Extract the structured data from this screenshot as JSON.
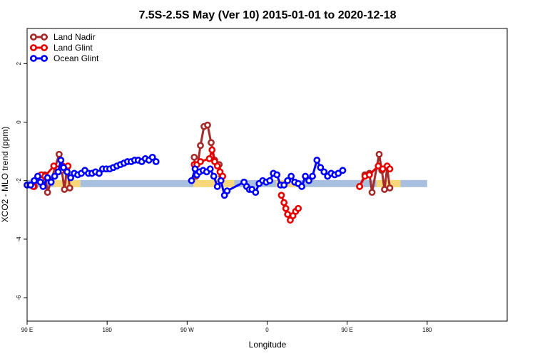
{
  "chart_data": {
    "type": "line",
    "title": "7.5S-2.5S May (Ver 10)   2015-01-01 to 2020-12-18",
    "xlabel": "Longitude",
    "ylabel": "XCO2 - MLO trend (ppm)",
    "xlim": [
      -90,
      450
    ],
    "ylim": [
      -6.8,
      3.2
    ],
    "x_ticks": [
      {
        "value": -90,
        "label": "90 E"
      },
      {
        "value": 0,
        "label": "180"
      },
      {
        "value": 90,
        "label": "90 W"
      },
      {
        "value": 180,
        "label": "0"
      },
      {
        "value": 270,
        "label": "90 E"
      },
      {
        "value": 360,
        "label": "180"
      }
    ],
    "y_ticks": [
      {
        "value": 2,
        "label": "2"
      },
      {
        "value": 0,
        "label": "0"
      },
      {
        "value": -2,
        "label": "-2"
      },
      {
        "value": -4,
        "label": "-4"
      },
      {
        "value": -6,
        "label": "-6"
      }
    ],
    "grid": false,
    "legend_position": "top-left",
    "surface_band": {
      "y": -2.1,
      "segments": [
        {
          "from": -90,
          "to": -60,
          "type": "ocean",
          "color": "#a8c0de"
        },
        {
          "from": -60,
          "to": -30,
          "type": "land",
          "color": "#f7d77a"
        },
        {
          "from": -30,
          "to": 97,
          "type": "ocean",
          "color": "#a8c0de"
        },
        {
          "from": 97,
          "to": 143,
          "type": "land",
          "color": "#f7d77a"
        },
        {
          "from": 143,
          "to": 190,
          "type": "ocean",
          "color": "#a8c0de"
        },
        {
          "from": 190,
          "to": 217,
          "type": "land",
          "color": "#f7d77a"
        },
        {
          "from": 217,
          "to": 303,
          "type": "ocean",
          "color": "#a8c0de"
        },
        {
          "from": 303,
          "to": 330,
          "type": "land",
          "color": "#f7d77a"
        },
        {
          "from": 330,
          "to": 360,
          "type": "ocean",
          "color": "#a8c0de"
        }
      ]
    },
    "series": [
      {
        "name": "Land Nadir",
        "color": "#a52a2a",
        "points": [
          [
            -82,
            -2.2
          ],
          [
            -78,
            -2.0
          ],
          [
            -74,
            -1.95
          ],
          [
            -70,
            -1.8
          ],
          [
            -67,
            -2.4
          ],
          [
            -54,
            -1.1
          ],
          [
            -51,
            -1.65
          ],
          [
            -48,
            -2.3
          ],
          [
            -45,
            -1.55
          ],
          [
            -42,
            -2.25
          ],
          [
            98,
            -1.2
          ],
          [
            100,
            -1.85
          ],
          [
            105,
            -0.8
          ],
          [
            109,
            -0.15
          ],
          [
            113,
            -0.1
          ],
          [
            117,
            -0.7
          ],
          [
            121,
            -1.3
          ],
          [
            126,
            -1.45
          ],
          [
            129,
            -1.85
          ],
          [
            284,
            -2.2
          ],
          [
            290,
            -1.8
          ],
          [
            295,
            -1.75
          ],
          [
            298,
            -2.4
          ],
          [
            306,
            -1.1
          ],
          [
            309,
            -1.65
          ],
          [
            312,
            -2.3
          ],
          [
            315,
            -1.55
          ],
          [
            318,
            -2.25
          ]
        ]
      },
      {
        "name": "Land Glint",
        "color": "#e60000",
        "points": [
          [
            -83,
            -2.2
          ],
          [
            -78,
            -1.85
          ],
          [
            -74,
            -1.8
          ],
          [
            -70,
            -1.85
          ],
          [
            -60,
            -1.5
          ],
          [
            -55,
            -1.6
          ],
          [
            -50,
            -1.5
          ],
          [
            -47,
            -1.6
          ],
          [
            -44,
            -1.5
          ],
          [
            98,
            -1.45
          ],
          [
            101,
            -1.45
          ],
          [
            105,
            -1.35
          ],
          [
            115,
            -1.25
          ],
          [
            118,
            -0.95
          ],
          [
            121,
            -1.35
          ],
          [
            124,
            -1.5
          ],
          [
            127,
            -1.7
          ],
          [
            130,
            -1.85
          ],
          [
            196,
            -2.5
          ],
          [
            199,
            -2.75
          ],
          [
            201,
            -2.95
          ],
          [
            203,
            -3.15
          ],
          [
            206,
            -3.35
          ],
          [
            209,
            -3.2
          ],
          [
            212,
            -3.05
          ],
          [
            215,
            -2.95
          ],
          [
            284,
            -2.2
          ],
          [
            290,
            -1.85
          ],
          [
            295,
            -1.8
          ],
          [
            305,
            -1.5
          ],
          [
            310,
            -1.6
          ],
          [
            315,
            -1.5
          ],
          [
            318,
            -1.6
          ]
        ]
      },
      {
        "name": "Ocean Glint",
        "color": "#0000ff",
        "points": [
          [
            -90,
            -2.15
          ],
          [
            -86,
            -2.15
          ],
          [
            -82,
            -2.0
          ],
          [
            -78,
            -1.85
          ],
          [
            -75,
            -2.05
          ],
          [
            -72,
            -2.2
          ],
          [
            -67,
            -1.9
          ],
          [
            -63,
            -2.05
          ],
          [
            -59,
            -1.85
          ],
          [
            -55,
            -1.7
          ],
          [
            -52,
            -1.3
          ],
          [
            -49,
            -1.55
          ],
          [
            -45,
            -1.7
          ],
          [
            -41,
            -1.9
          ],
          [
            -37,
            -1.75
          ],
          [
            -33,
            -1.8
          ],
          [
            -29,
            -1.75
          ],
          [
            -25,
            -1.65
          ],
          [
            -21,
            -1.75
          ],
          [
            -17,
            -1.75
          ],
          [
            -13,
            -1.7
          ],
          [
            -9,
            -1.75
          ],
          [
            -5,
            -1.6
          ],
          [
            -1,
            -1.6
          ],
          [
            3,
            -1.6
          ],
          [
            7,
            -1.55
          ],
          [
            11,
            -1.5
          ],
          [
            15,
            -1.45
          ],
          [
            19,
            -1.4
          ],
          [
            23,
            -1.35
          ],
          [
            27,
            -1.35
          ],
          [
            31,
            -1.3
          ],
          [
            35,
            -1.3
          ],
          [
            39,
            -1.35
          ],
          [
            43,
            -1.25
          ],
          [
            47,
            -1.3
          ],
          [
            51,
            -1.2
          ],
          [
            55,
            -1.35
          ],
          [
            95,
            -2.0
          ],
          [
            99,
            -1.6
          ],
          [
            101,
            -1.8
          ],
          [
            104,
            -1.7
          ],
          [
            108,
            -1.65
          ],
          [
            112,
            -1.7
          ],
          [
            116,
            -1.6
          ],
          [
            120,
            -1.85
          ],
          [
            124,
            -2.2
          ],
          [
            128,
            -2.0
          ],
          [
            132,
            -2.5
          ],
          [
            135,
            -2.35
          ],
          [
            154,
            -2.05
          ],
          [
            157,
            -2.2
          ],
          [
            160,
            -2.3
          ],
          [
            163,
            -2.3
          ],
          [
            167,
            -2.4
          ],
          [
            171,
            -2.1
          ],
          [
            175,
            -2.0
          ],
          [
            179,
            -2.05
          ],
          [
            183,
            -2.0
          ],
          [
            187,
            -1.75
          ],
          [
            191,
            -1.8
          ],
          [
            195,
            -2.15
          ],
          [
            199,
            -2.15
          ],
          [
            203,
            -2.0
          ],
          [
            207,
            -1.85
          ],
          [
            211,
            -2.05
          ],
          [
            215,
            -2.1
          ],
          [
            219,
            -2.2
          ],
          [
            223,
            -1.85
          ],
          [
            227,
            -2.0
          ],
          [
            231,
            -1.85
          ],
          [
            236,
            -1.3
          ],
          [
            240,
            -1.55
          ],
          [
            244,
            -1.7
          ],
          [
            248,
            -1.85
          ],
          [
            252,
            -1.75
          ],
          [
            256,
            -1.8
          ],
          [
            260,
            -1.75
          ],
          [
            265,
            -1.65
          ]
        ]
      }
    ]
  }
}
